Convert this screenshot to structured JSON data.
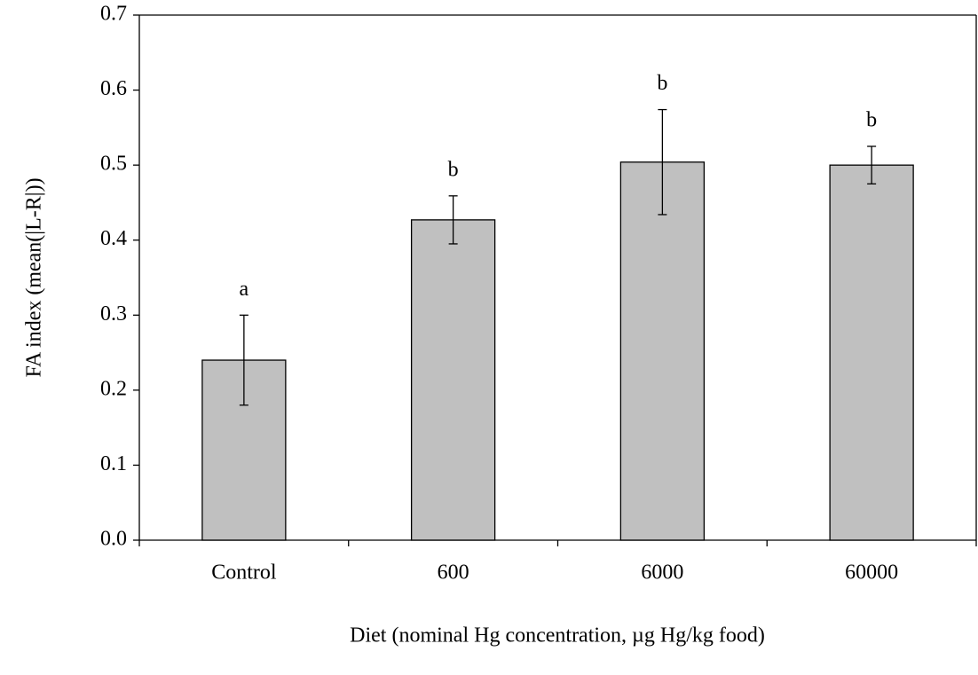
{
  "chart_data": {
    "type": "bar",
    "x_label": "Diet (nominal Hg concentration, µg Hg/kg food)",
    "y_label": "FA index (mean(|L-R|))",
    "categories": [
      "Control",
      "600",
      "6000",
      "60000"
    ],
    "values": [
      0.24,
      0.427,
      0.504,
      0.5
    ],
    "errors": [
      0.06,
      0.032,
      0.07,
      0.025
    ],
    "annotations": [
      "a",
      "b",
      "b",
      "b"
    ],
    "color": "#c0c0c0",
    "ylim": [
      0,
      0.7
    ],
    "yticks": [
      {
        "value": 0,
        "label": "0.0"
      },
      0.1,
      0.2,
      0.3,
      0.4,
      0.5,
      0.6,
      0.7
    ],
    "grid": false
  }
}
